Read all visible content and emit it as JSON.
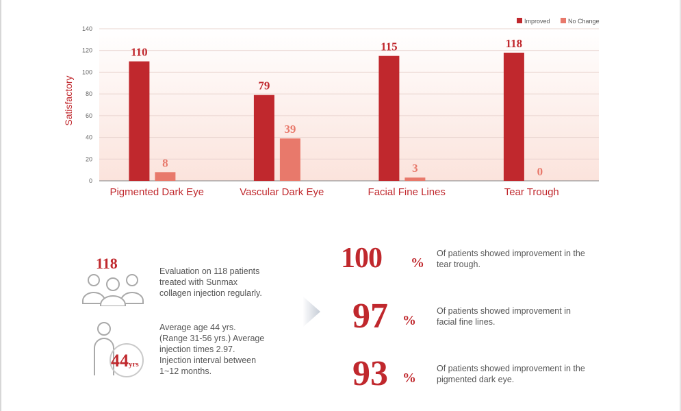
{
  "chart_data": {
    "type": "bar",
    "categories": [
      "Pigmented Dark Eye",
      "Vascular Dark Eye",
      "Facial Fine Lines",
      "Tear Trough"
    ],
    "series": [
      {
        "name": "Improved",
        "values": [
          110,
          79,
          115,
          118
        ],
        "color": "#c0282d"
      },
      {
        "name": "No Change",
        "values": [
          8,
          39,
          3,
          0
        ],
        "color": "#e8796b"
      }
    ],
    "ylabel": "Satisfactory",
    "ylim": [
      0,
      140
    ],
    "yticks": [
      "0",
      "20",
      "40",
      "60",
      "80",
      "100",
      "120",
      "140"
    ],
    "data_labels": [
      [
        "110",
        "79",
        "115",
        "118"
      ],
      [
        "8",
        "39",
        "3",
        "0"
      ]
    ],
    "legend": "top-right",
    "grid": true
  },
  "stats": {
    "patients": {
      "number": "118",
      "text": [
        "Evaluation on 118 patients",
        "treated with Sunmax",
        "collagen injection regularly."
      ]
    },
    "age": {
      "number": "44",
      "unit": "yrs",
      "text": [
        "Average age 44 yrs.",
        "(Range 31-56 yrs.) Average",
        "injection times 2.97.",
        "Injection interval between",
        "1~12 months."
      ]
    }
  },
  "percentages": [
    {
      "value": "100",
      "sign": "%",
      "text": [
        "Of patients showed improvement in the",
        "tear trough."
      ]
    },
    {
      "value": "97",
      "sign": "%",
      "text": [
        "Of patients showed improvement in",
        "facial fine lines."
      ]
    },
    {
      "value": "93",
      "sign": "%",
      "text": [
        "Of patients showed improvement in the",
        "pigmented dark eye."
      ]
    }
  ],
  "colors": {
    "accent": "#c0282d",
    "secondary": "#e8796b",
    "icon": "#a9a9a9"
  }
}
